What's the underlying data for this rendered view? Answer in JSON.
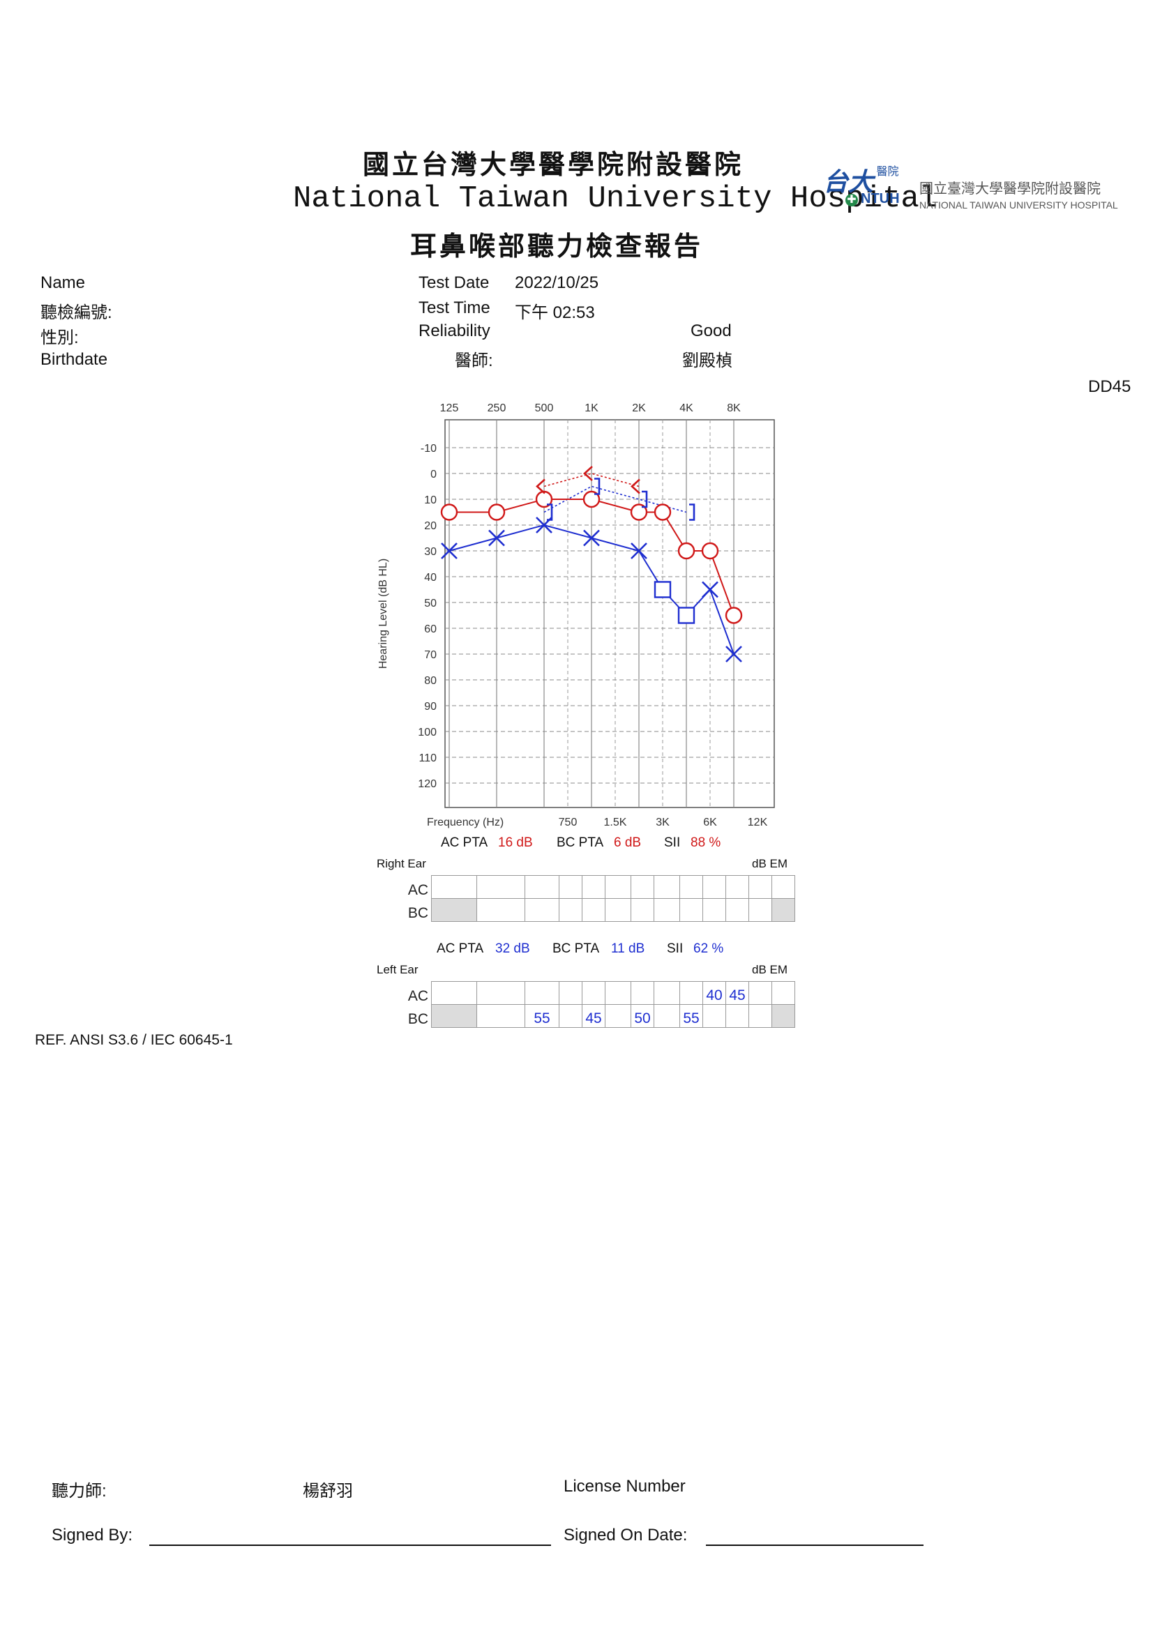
{
  "header": {
    "title_zh": "國立台灣大學醫學院附設醫院",
    "title_en": "National Taiwan University Hospital",
    "subtitle_zh": "耳鼻喉部聽力檢查報告",
    "logo": {
      "mark": "台大",
      "mark_sub": "醫院",
      "abbr": "NTUH",
      "name_zh": "國立臺灣大學醫學院附設醫院",
      "name_en": "NATIONAL TAIWAN UNIVERSITY HOSPITAL"
    }
  },
  "patient": {
    "name_label": "Name",
    "id_label": "聽檢編號:",
    "sex_label": "性別:",
    "birth_label": "Birthdate"
  },
  "test": {
    "date_label": "Test Date",
    "date_value": "2022/10/25",
    "time_label": "Test Time",
    "time_value": "下午 02:53",
    "reliability_label": "Reliability",
    "reliability_value": "Good",
    "doctor_label": "醫師:",
    "doctor_value": "劉殿楨",
    "device": "DD45"
  },
  "chart_data": {
    "type": "line",
    "ylabel": "Hearing Level (dB HL)",
    "ylim": [
      -10,
      120
    ],
    "y_ticks": [
      "-10",
      "0",
      "10",
      "20",
      "30",
      "40",
      "50",
      "60",
      "70",
      "80",
      "90",
      "100",
      "110",
      "120"
    ],
    "top_ticks": [
      "125",
      "250",
      "500",
      "1K",
      "2K",
      "4K",
      "8K"
    ],
    "bottom_label": "Frequency (Hz)",
    "bottom_ticks": [
      "750",
      "1.5K",
      "3K",
      "6K",
      "12K"
    ],
    "grid": true,
    "series": [
      {
        "name": "",
        "ear": "right",
        "kind": "AC",
        "marker": "circle",
        "color": "#d01818",
        "x": [
          "125",
          "250",
          "500",
          "1K",
          "2K",
          "3K",
          "4K",
          "6K",
          "8K"
        ],
        "y": [
          15,
          15,
          10,
          10,
          15,
          15,
          30,
          30,
          55
        ]
      },
      {
        "name": "",
        "ear": "left",
        "kind": "AC",
        "marker": "cross",
        "color": "#1e2ed0",
        "x": [
          "125",
          "250",
          "500",
          "1K",
          "2K",
          "6K",
          "8K"
        ],
        "y": [
          30,
          25,
          20,
          25,
          30,
          45,
          70
        ]
      },
      {
        "name": "",
        "ear": "left",
        "kind": "AC masked",
        "marker": "square",
        "color": "#1e2ed0",
        "x": [
          "3K",
          "4K"
        ],
        "y": [
          45,
          55
        ]
      },
      {
        "name": "",
        "ear": "right",
        "kind": "BC",
        "marker": "angle-open",
        "color": "#d01818",
        "x": [
          "500",
          "1K",
          "2K"
        ],
        "y": [
          5,
          0,
          5
        ]
      },
      {
        "name": "",
        "ear": "left",
        "kind": "BC masked",
        "marker": "bracket",
        "color": "#1e2ed0",
        "x": [
          "500",
          "1K",
          "2K",
          "4K"
        ],
        "y": [
          15,
          5,
          10,
          15
        ]
      }
    ]
  },
  "right_ear": {
    "ac_pta_label": "AC PTA",
    "ac_pta_value": "16 dB",
    "bc_pta_label": "BC PTA",
    "bc_pta_value": "6 dB",
    "sii_label": "SII",
    "sii_value": "88 %",
    "ear_label": "Right Ear",
    "em_label": "dB EM",
    "ac_row_label": "AC",
    "bc_row_label": "BC",
    "ac_masking": [
      "",
      "",
      "",
      "",
      "",
      "",
      "",
      "",
      "",
      "",
      "",
      "",
      ""
    ],
    "bc_masking": [
      "",
      "",
      "",
      "",
      "",
      "",
      "",
      "",
      "",
      "",
      "",
      "",
      ""
    ]
  },
  "left_ear": {
    "ac_pta_label": "AC PTA",
    "ac_pta_value": "32 dB",
    "bc_pta_label": "BC PTA",
    "bc_pta_value": "11 dB",
    "sii_label": "SII",
    "sii_value": "62 %",
    "ear_label": "Left Ear",
    "em_label": "dB EM",
    "ac_row_label": "AC",
    "bc_row_label": "BC",
    "ac_masking": [
      "",
      "",
      "",
      "",
      "",
      "",
      "",
      "",
      "",
      "40",
      "45",
      "",
      ""
    ],
    "bc_masking": [
      "",
      "",
      "55",
      "",
      "45",
      "",
      "50",
      "",
      "55",
      "",
      "",
      "",
      ""
    ]
  },
  "reference": "REF. ANSI S3.6 / IEC 60645-1",
  "footer": {
    "audiologist_label": "聽力師:",
    "audiologist_value": "楊舒羽",
    "license_label": "License Number",
    "signed_by_label": "Signed By:",
    "signed_on_label": "Signed On Date:"
  }
}
